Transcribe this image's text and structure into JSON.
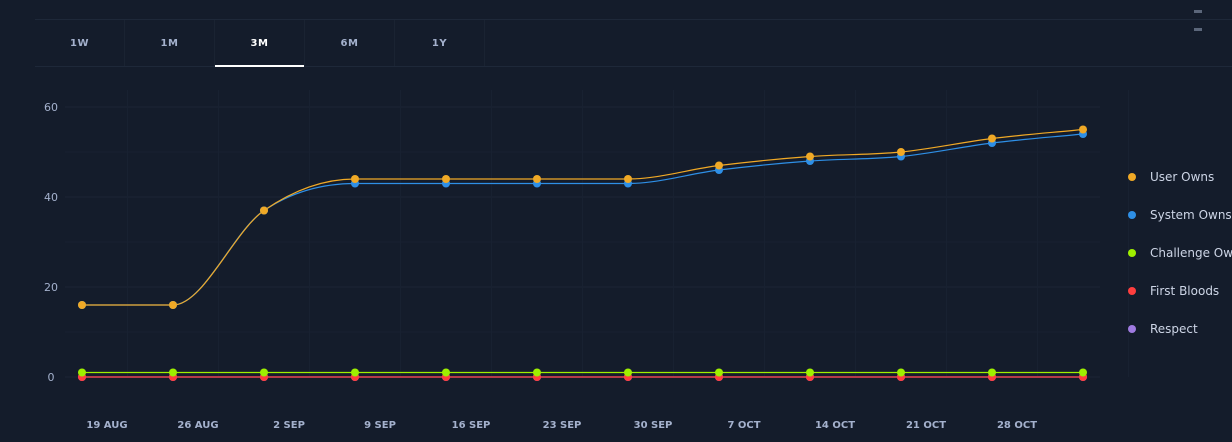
{
  "tabs": [
    {
      "label": "1W",
      "active": false
    },
    {
      "label": "1M",
      "active": false
    },
    {
      "label": "3M",
      "active": true
    },
    {
      "label": "6M",
      "active": false
    },
    {
      "label": "1Y",
      "active": false
    }
  ],
  "chart_data": {
    "type": "line",
    "x": [
      "19 AUG",
      "26 AUG",
      "2 SEP",
      "9 SEP",
      "16 SEP",
      "23 SEP",
      "30 SEP",
      "7 OCT",
      "14 OCT",
      "21 OCT",
      "28 OCT",
      ""
    ],
    "ylim": [
      0,
      60
    ],
    "yticks": [
      0,
      20,
      40,
      60
    ],
    "grid": true,
    "legend_position": "right",
    "series": [
      {
        "name": "User Owns",
        "color": "#f0a926",
        "values": [
          16,
          16,
          37,
          44,
          44,
          44,
          44,
          47,
          49,
          50,
          53,
          55
        ]
      },
      {
        "name": "System Owns",
        "color": "#2e8fe6",
        "values": [
          16,
          16,
          37,
          43,
          43,
          43,
          43,
          46,
          48,
          49,
          52,
          54
        ]
      },
      {
        "name": "Challenge Owns",
        "color": "#9fef00",
        "values": [
          1,
          1,
          1,
          1,
          1,
          1,
          1,
          1,
          1,
          1,
          1,
          1
        ]
      },
      {
        "name": "First Bloods",
        "color": "#ff3e3e",
        "values": [
          0,
          0,
          0,
          0,
          0,
          0,
          0,
          0,
          0,
          0,
          0,
          0
        ]
      },
      {
        "name": "Respect",
        "color": "#9f7ae0",
        "values": [
          0,
          0,
          0,
          0,
          0,
          0,
          0,
          0,
          0,
          0,
          0,
          0
        ]
      }
    ]
  }
}
